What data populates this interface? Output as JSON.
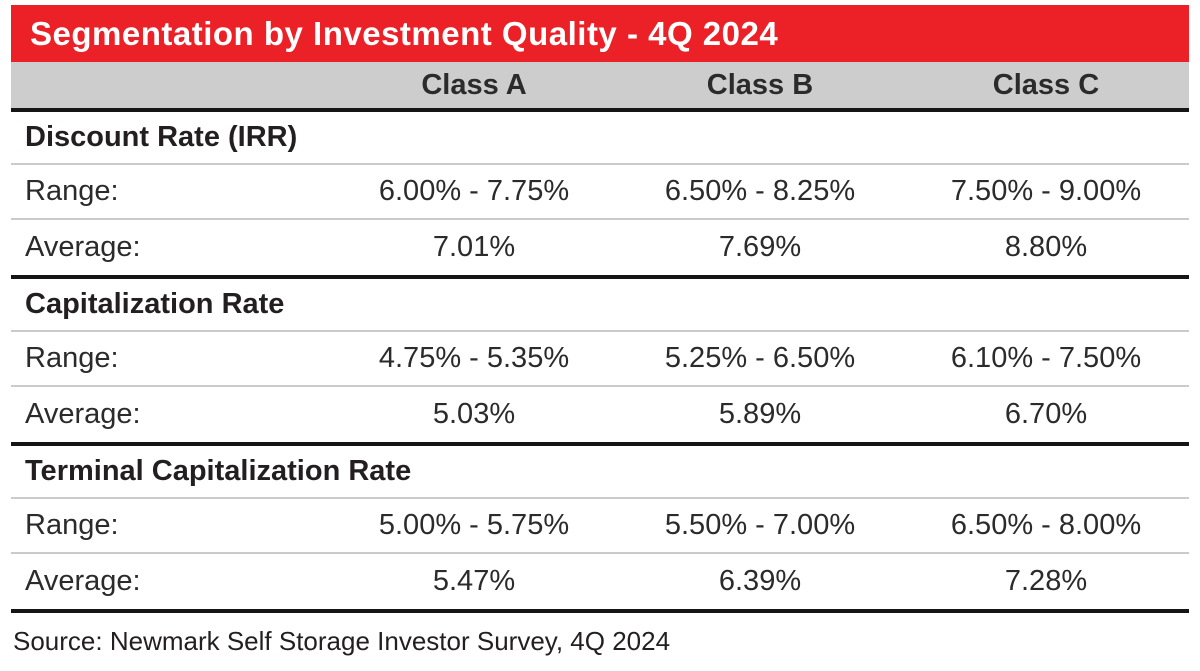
{
  "title_bar": {
    "title": "Segmentation by Investment Quality - 4Q 2024"
  },
  "header": {
    "columns": [
      "Class A",
      "Class B",
      "Class C"
    ]
  },
  "sections": [
    {
      "name": "Discount Rate (IRR)",
      "rows": [
        {
          "label": "Range:",
          "values": [
            "6.00% - 7.75%",
            "6.50% - 8.25%",
            "7.50% - 9.00%"
          ]
        },
        {
          "label": "Average:",
          "values": [
            "7.01%",
            "7.69%",
            "8.80%"
          ]
        }
      ]
    },
    {
      "name": "Capitalization Rate",
      "rows": [
        {
          "label": "Range:",
          "values": [
            "4.75% - 5.35%",
            "5.25% - 6.50%",
            "6.10% - 7.50%"
          ]
        },
        {
          "label": "Average:",
          "values": [
            "5.03%",
            "5.89%",
            "6.70%"
          ]
        }
      ]
    },
    {
      "name": "Terminal Capitalization Rate",
      "rows": [
        {
          "label": "Range:",
          "values": [
            "5.00% - 5.75%",
            "5.50% - 7.00%",
            "6.50% - 8.00%"
          ]
        },
        {
          "label": "Average:",
          "values": [
            "5.47%",
            "6.39%",
            "7.28%"
          ]
        }
      ]
    }
  ],
  "footer": {
    "source": "Source: Newmark Self Storage Investor Survey, 4Q 2024"
  },
  "colors": {
    "accent_red": "#ec2027",
    "header_gray": "#cdcdcd",
    "rule_black": "#151515",
    "rule_light_gray": "#cbcbcb",
    "text_dark": "#231f20",
    "title_text": "#ffffff"
  },
  "chart_data": {
    "type": "table",
    "title": "Segmentation by Investment Quality - 4Q 2024",
    "columns": [
      "",
      "Class A",
      "Class B",
      "Class C"
    ],
    "rows": [
      [
        "Discount Rate (IRR)",
        "",
        "",
        ""
      ],
      [
        "Range:",
        "6.00% - 7.75%",
        "6.50% - 8.25%",
        "7.50% - 9.00%"
      ],
      [
        "Average:",
        "7.01%",
        "7.69%",
        "8.80%"
      ],
      [
        "Capitalization Rate",
        "",
        "",
        ""
      ],
      [
        "Range:",
        "4.75% - 5.35%",
        "5.25% - 6.50%",
        "6.10% - 7.50%"
      ],
      [
        "Average:",
        "5.03%",
        "5.89%",
        "6.70%"
      ],
      [
        "Terminal Capitalization Rate",
        "",
        "",
        ""
      ],
      [
        "Range:",
        "5.00% - 5.75%",
        "5.50% - 7.00%",
        "6.50% - 8.00%"
      ],
      [
        "Average:",
        "5.47%",
        "6.39%",
        "7.28%"
      ]
    ],
    "numeric": {
      "discount_rate_irr": {
        "range_pct": {
          "class_a": [
            6.0,
            7.75
          ],
          "class_b": [
            6.5,
            8.25
          ],
          "class_c": [
            7.5,
            9.0
          ]
        },
        "average_pct": {
          "class_a": 7.01,
          "class_b": 7.69,
          "class_c": 8.8
        }
      },
      "capitalization_rate": {
        "range_pct": {
          "class_a": [
            4.75,
            5.35
          ],
          "class_b": [
            5.25,
            6.5
          ],
          "class_c": [
            6.1,
            7.5
          ]
        },
        "average_pct": {
          "class_a": 5.03,
          "class_b": 5.89,
          "class_c": 6.7
        }
      },
      "terminal_capitalization_rate": {
        "range_pct": {
          "class_a": [
            5.0,
            5.75
          ],
          "class_b": [
            5.5,
            7.0
          ],
          "class_c": [
            6.5,
            8.0
          ]
        },
        "average_pct": {
          "class_a": 5.47,
          "class_b": 6.39,
          "class_c": 7.28
        }
      }
    },
    "source": "Source: Newmark Self Storage Investor Survey, 4Q 2024"
  }
}
